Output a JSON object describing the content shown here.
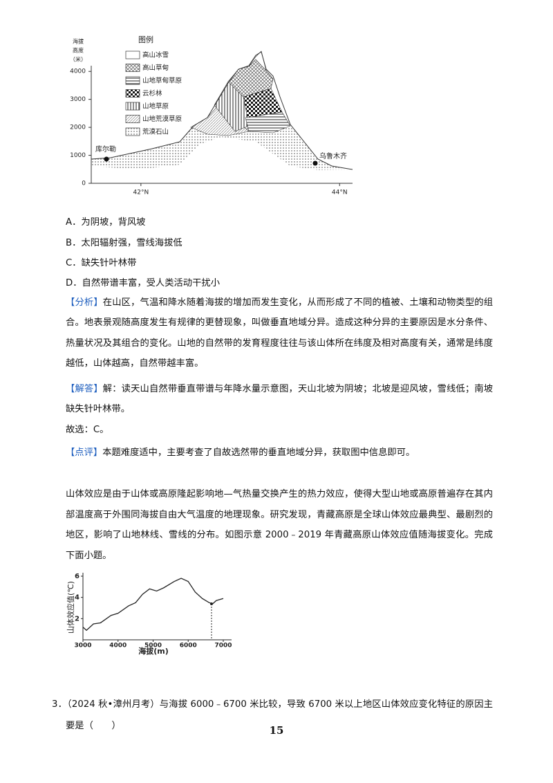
{
  "figure1": {
    "y_label": [
      "海拔",
      "高度",
      "（米）"
    ],
    "legend_title": "图例",
    "legend": [
      "高山冰雪",
      "高山草甸",
      "山地草甸草原",
      "云杉林",
      "山地草原",
      "山地荒漠草原",
      "荒漠石山"
    ],
    "ylim": [
      0,
      4500
    ],
    "yticks": [
      0,
      1000,
      2000,
      3000,
      4000
    ],
    "xlim": [
      41.5,
      44.2
    ],
    "xticks": [
      {
        "value": 42,
        "label": "42°N"
      },
      {
        "value": 44,
        "label": "44°N"
      }
    ],
    "places": [
      "库尔勒",
      "乌鲁木齐"
    ]
  },
  "options": [
    "A．为阴坡，背风坡",
    "B．太阳辐射强，雪线海拔低",
    "C．缺失针叶林带",
    "D．自然带谱丰富，受人类活动干扰小"
  ],
  "analysis": {
    "label": "【分析】",
    "text": "在山区，气温和降水随着海拔的增加而发生变化，从而形成了不同的植被、土壤和动物类型的组合。地表景观随高度发生有规律的更替现象，叫做垂直地域分异。造成这种分异的主要原因是水分条件、热量状况及其组合的变化。山地的自然带的发育程度往往与该山体所在纬度及相对高度有关，通常是纬度越低，山体越高，自然带越丰富。"
  },
  "answer": {
    "label": "【解答】",
    "text": "解：读天山自然带垂直带谱与年降水量示意图，天山北坡为阴坡；北坡是迎风坡，雪线低；南坡缺失针叶林带。"
  },
  "choice": "故选：C。",
  "comment": {
    "label": "【点评】",
    "text": "本题难度适中，主要考查了自故选然带的垂直地域分异，获取图中信息即可。"
  },
  "passage": "山体效应是由于山体或高原隆起影响地—气热量交换产生的热力效应，使得大型山地或高原普遍存在其内部温度高于外围同海拔自由大气温度的地理现象。研究发现，青藏高原是全球山体效应最典型、最剧烈的地区，影响了山地林线、雪线的分布。如图示意 2000﹣2019 年青藏高原山体效应值随海拔变化。完成下面小题。",
  "figure2": {
    "type": "line",
    "y_label": "山体效应值(℃)",
    "x_label": "海拔(m)",
    "x": [
      3000,
      3100,
      3300,
      3500,
      3800,
      4000,
      4300,
      4500,
      4700,
      4900,
      5100,
      5300,
      5600,
      5800,
      6000,
      6200,
      6400,
      6600,
      6700,
      6800,
      7000
    ],
    "values": [
      1.2,
      0.9,
      1.5,
      1.6,
      2.3,
      2.5,
      3.2,
      3.5,
      4.3,
      4.8,
      4.6,
      4.9,
      5.5,
      5.8,
      5.5,
      4.5,
      3.9,
      3.5,
      3.4,
      3.7,
      3.9
    ],
    "color": "#222222",
    "xlim": [
      3000,
      7000
    ],
    "ylim": [
      0,
      6
    ],
    "xticks": [
      3000,
      4000,
      5000,
      6000,
      7000
    ],
    "yticks": [
      2,
      4,
      6
    ]
  },
  "question3": {
    "number": "3．",
    "text": "（2024 秋•漳州月考）与海拔 6000﹣6700 米比较，导致 6700 米以上地区山体效应变化特征的原因主要是（　　）"
  },
  "page_number": "15"
}
